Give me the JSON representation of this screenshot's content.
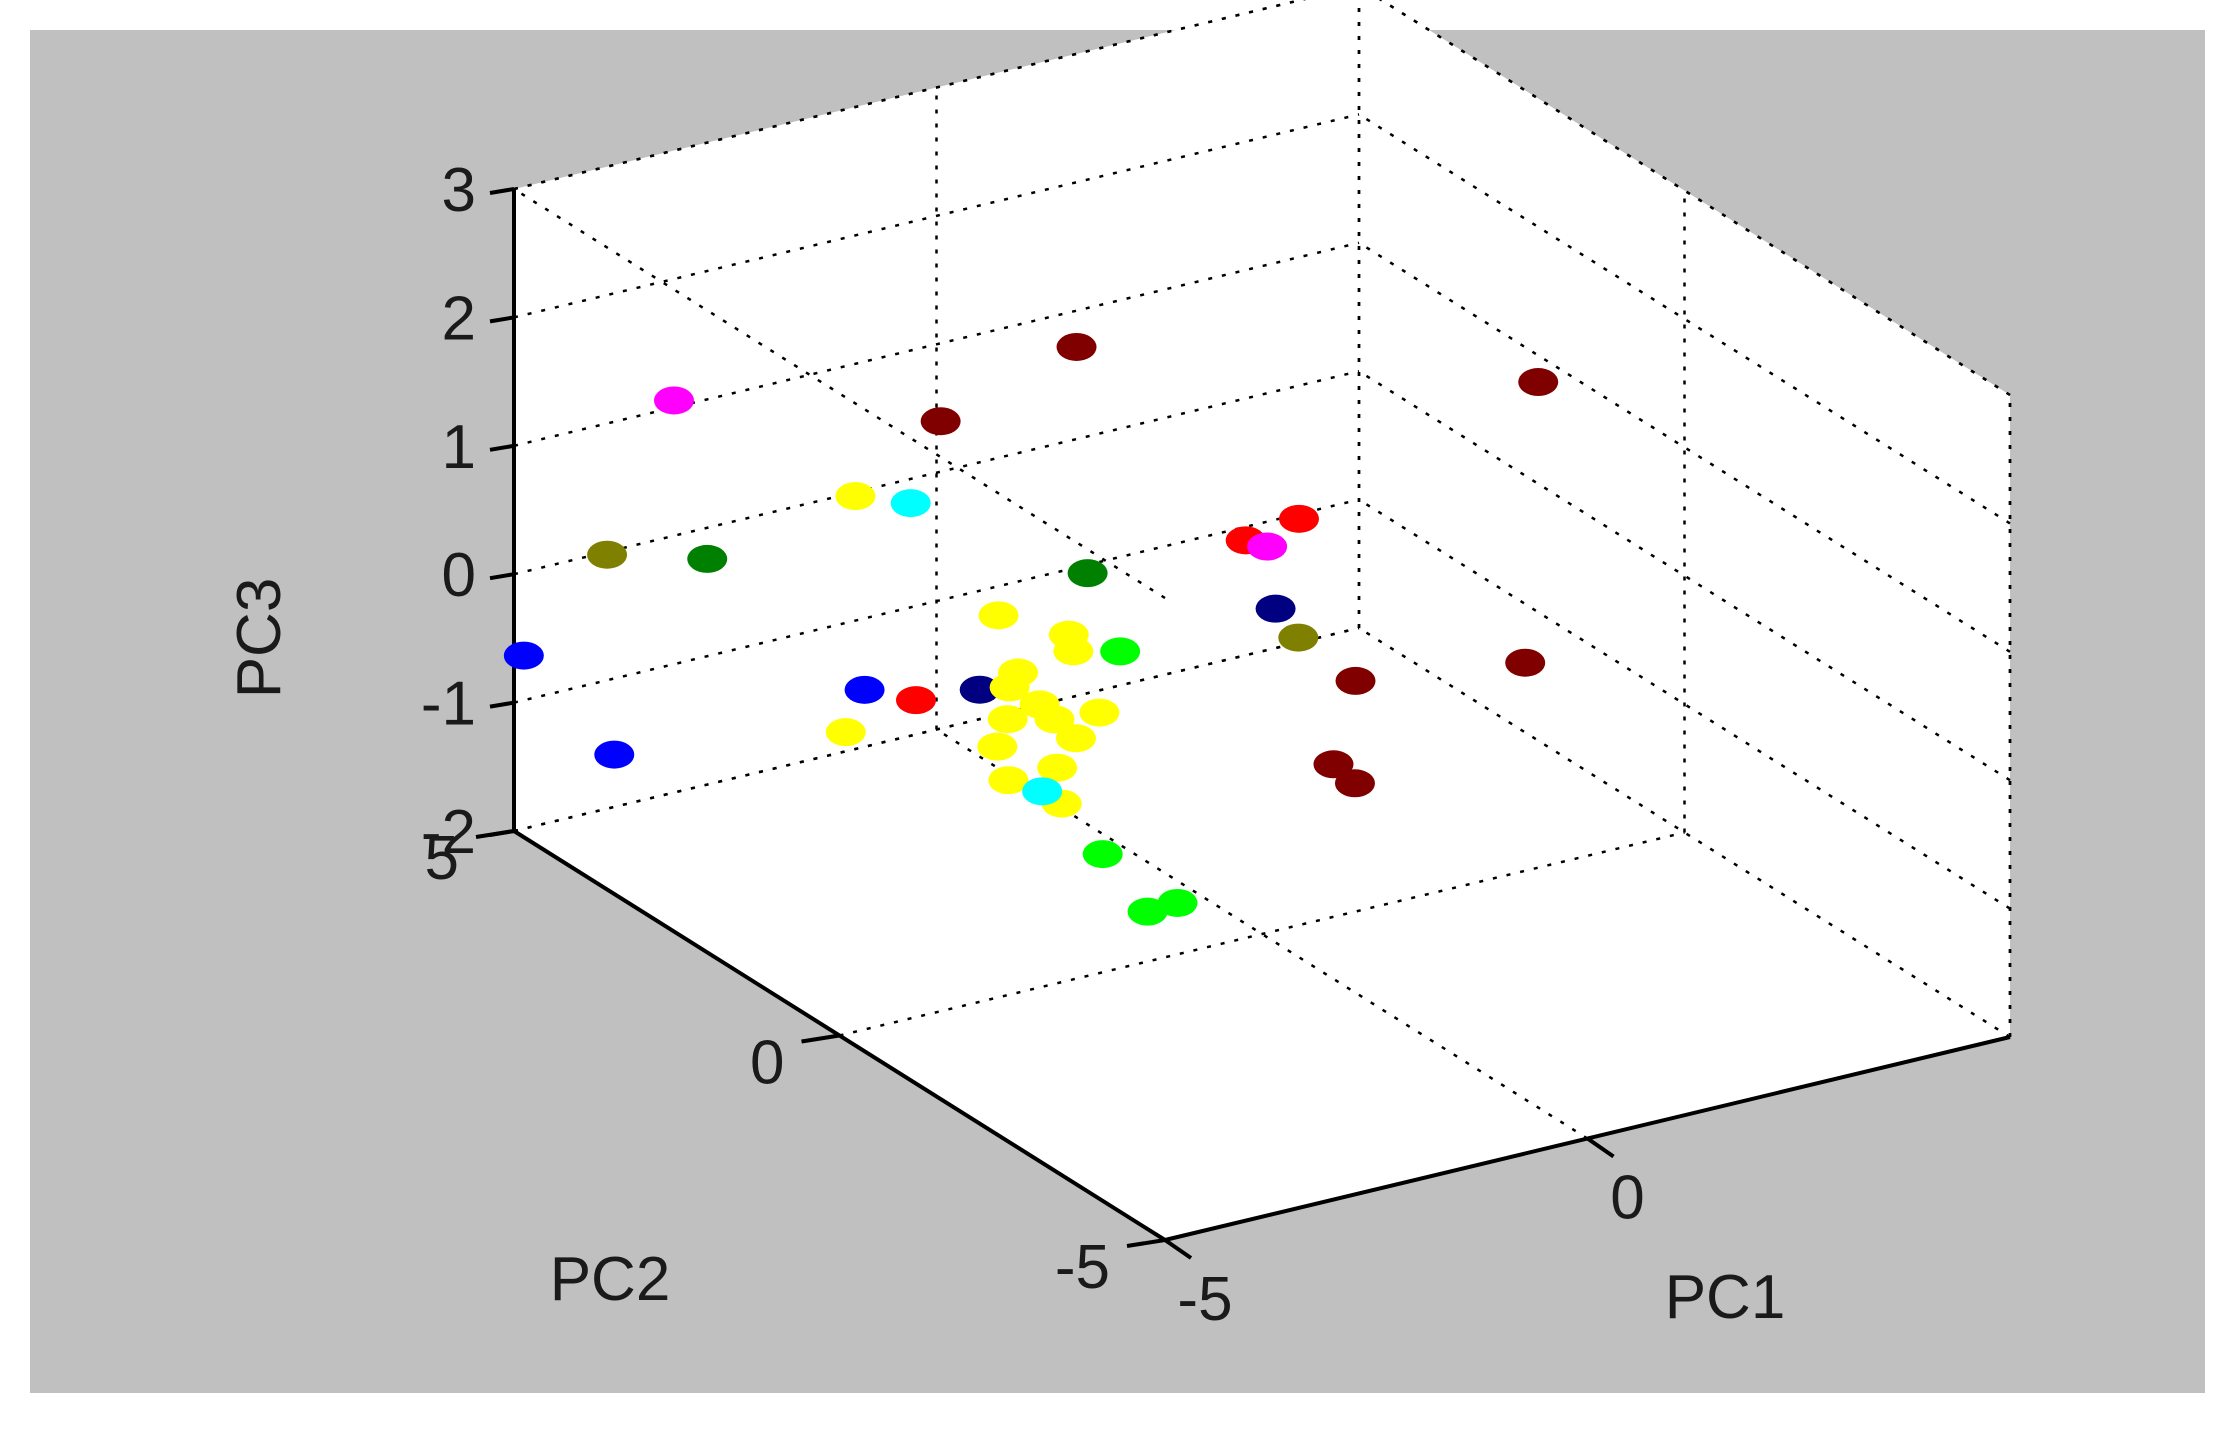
{
  "chart_data": {
    "type": "scatter",
    "xlabel": "PC1",
    "ylabel": "PC2",
    "zlabel": "PC3",
    "xlim": [
      -5,
      5
    ],
    "ylim": [
      -5,
      5
    ],
    "zlim": [
      -2,
      3
    ],
    "xticks": [
      {
        "value": -5,
        "label": "-5"
      },
      {
        "value": 0,
        "label": "0"
      }
    ],
    "yticks": [
      {
        "value": -5,
        "label": "-5"
      },
      {
        "value": 0,
        "label": "0"
      },
      {
        "value": 5,
        "label": "5"
      }
    ],
    "zticks": [
      {
        "value": -2,
        "label": "-2"
      },
      {
        "value": -1,
        "label": "-1"
      },
      {
        "value": 0,
        "label": "0"
      },
      {
        "value": 1,
        "label": "1"
      },
      {
        "value": 2,
        "label": "2"
      },
      {
        "value": 3,
        "label": "3"
      }
    ],
    "grid": true,
    "background_color": "#c0c0c0",
    "axes_color": "#ffffff",
    "points": [
      {
        "x": -3.8,
        "y": 4.1,
        "z": 1.45,
        "color": "#ff00ff"
      },
      {
        "x": -0.5,
        "y": 2.2,
        "z": 1.95,
        "color": "#800000"
      },
      {
        "x": -1.8,
        "y": 2.6,
        "z": 1.45,
        "color": "#800000"
      },
      {
        "x": 3.5,
        "y": 0.3,
        "z": 1.65,
        "color": "#800000"
      },
      {
        "x": 0.9,
        "y": 0.6,
        "z": 0.9,
        "color": "#ff0000"
      },
      {
        "x": 0.5,
        "y": 0.9,
        "z": 0.7,
        "color": "#ff0000"
      },
      {
        "x": 0.6,
        "y": 0.7,
        "z": 0.7,
        "color": "#ff00ff"
      },
      {
        "x": -2.5,
        "y": 3.0,
        "z": 0.85,
        "color": "#ffff00"
      },
      {
        "x": -2.0,
        "y": 2.8,
        "z": 0.78,
        "color": "#00ffff"
      },
      {
        "x": -4.9,
        "y": 3.7,
        "z": 0.55,
        "color": "#808000"
      },
      {
        "x": -4.1,
        "y": 3.2,
        "z": 0.55,
        "color": "#008000"
      },
      {
        "x": -0.6,
        "y": 1.9,
        "z": 0.3,
        "color": "#008000"
      },
      {
        "x": 0.7,
        "y": 0.7,
        "z": 0.2,
        "color": "#000080"
      },
      {
        "x": -1.5,
        "y": 2.1,
        "z": 0.05,
        "color": "#ffff00"
      },
      {
        "x": -5.5,
        "y": 4.2,
        "z": -0.3,
        "color": "#0000ff"
      },
      {
        "x": -5.2,
        "y": 3.2,
        "z": -0.8,
        "color": "#0000ff"
      },
      {
        "x": -2.7,
        "y": 2.6,
        "z": -0.5,
        "color": "#0000ff"
      },
      {
        "x": -2.4,
        "y": 2.2,
        "z": -0.5,
        "color": "#ff0000"
      },
      {
        "x": -1.8,
        "y": 2.0,
        "z": -0.45,
        "color": "#000080"
      },
      {
        "x": -0.6,
        "y": 1.4,
        "z": -0.15,
        "color": "#00ff00"
      },
      {
        "x": -1.0,
        "y": 1.6,
        "z": -0.15,
        "color": "#ffff00"
      },
      {
        "x": -0.9,
        "y": 1.8,
        "z": -0.1,
        "color": "#ffff00"
      },
      {
        "x": -1.5,
        "y": 1.8,
        "z": -0.3,
        "color": "#ffff00"
      },
      {
        "x": -1.4,
        "y": 1.6,
        "z": -0.5,
        "color": "#ffff00"
      },
      {
        "x": -1.6,
        "y": 1.8,
        "z": -0.4,
        "color": "#ffff00"
      },
      {
        "x": -1.3,
        "y": 1.5,
        "z": -0.6,
        "color": "#ffff00"
      },
      {
        "x": -1.2,
        "y": 1.3,
        "z": -0.7,
        "color": "#ffff00"
      },
      {
        "x": -1.7,
        "y": 1.7,
        "z": -0.6,
        "color": "#ffff00"
      },
      {
        "x": -1.9,
        "y": 1.6,
        "z": -0.75,
        "color": "#ffff00"
      },
      {
        "x": -2.0,
        "y": 1.3,
        "z": -0.9,
        "color": "#ffff00"
      },
      {
        "x": -1.5,
        "y": 1.2,
        "z": -0.85,
        "color": "#ffff00"
      },
      {
        "x": -1.0,
        "y": 1.2,
        "z": -0.5,
        "color": "#ffff00"
      },
      {
        "x": -1.6,
        "y": 1.0,
        "z": -1.05,
        "color": "#ffff00"
      },
      {
        "x": -3.0,
        "y": 2.5,
        "z": -0.75,
        "color": "#ffff00"
      },
      {
        "x": -1.6,
        "y": 1.3,
        "z": -1.05,
        "color": "#00ffff"
      },
      {
        "x": -1.5,
        "y": 0.5,
        "z": -1.3,
        "color": "#00ff00"
      },
      {
        "x": -1.0,
        "y": 0.0,
        "z": -1.6,
        "color": "#00ff00"
      },
      {
        "x": -1.2,
        "y": 0.2,
        "z": -1.7,
        "color": "#00ff00"
      },
      {
        "x": 1.2,
        "y": 1.0,
        "z": -0.2,
        "color": "#808000"
      },
      {
        "x": 1.8,
        "y": 0.9,
        "z": -0.6,
        "color": "#800000"
      },
      {
        "x": 3.5,
        "y": 0.5,
        "z": -0.6,
        "color": "#800000"
      },
      {
        "x": 1.0,
        "y": 0.2,
        "z": -0.9,
        "color": "#800000"
      },
      {
        "x": 1.1,
        "y": 0.0,
        "z": -1.0,
        "color": "#800000"
      }
    ]
  }
}
